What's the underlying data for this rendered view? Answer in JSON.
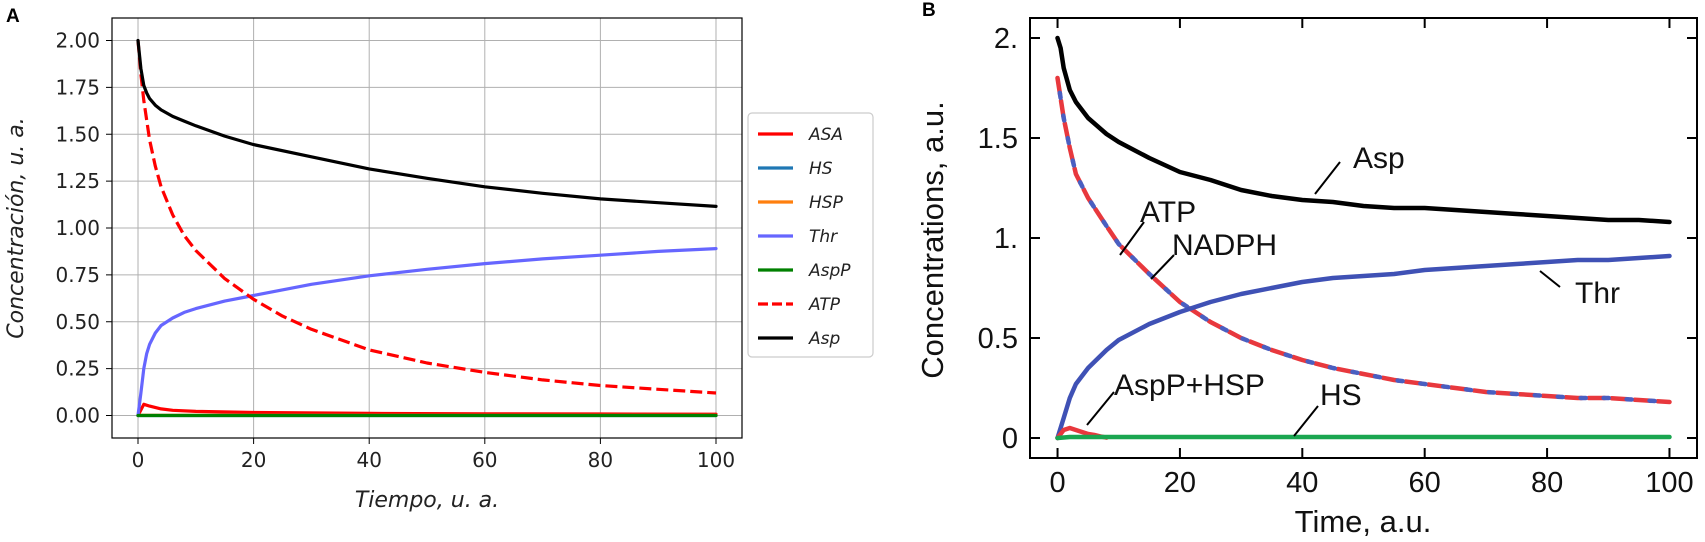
{
  "panels": [
    {
      "letter": "A"
    },
    {
      "letter": "B"
    }
  ],
  "chart_data": [
    {
      "type": "line",
      "xlabel": "Tiempo, u. a.",
      "ylabel": "Concentración, u. a.",
      "xlim": [
        0,
        100
      ],
      "ylim": [
        0,
        2.0
      ],
      "x_ticks": [
        0,
        20,
        40,
        60,
        80,
        100
      ],
      "y_ticks": [
        "0.00",
        "0.25",
        "0.50",
        "0.75",
        "1.00",
        "1.25",
        "1.50",
        "1.75",
        "2.00"
      ],
      "grid": true,
      "legend_position": "right-outside",
      "series": [
        {
          "name": "ASA",
          "color": "#ff0000",
          "dash": "solid",
          "x": [
            0,
            1,
            2,
            4,
            6,
            10,
            20,
            40,
            60,
            80,
            100
          ],
          "y": [
            0,
            0.06,
            0.05,
            0.035,
            0.028,
            0.022,
            0.016,
            0.011,
            0.009,
            0.008,
            0.007
          ]
        },
        {
          "name": "HS",
          "color": "#1f77b4",
          "dash": "solid",
          "x": [
            0,
            100
          ],
          "y": [
            0,
            0
          ]
        },
        {
          "name": "HSP",
          "color": "#ff7f0e",
          "dash": "solid",
          "x": [
            0,
            100
          ],
          "y": [
            0.001,
            0.001
          ]
        },
        {
          "name": "Thr",
          "color": "#6666ff",
          "dash": "solid",
          "x": [
            0,
            0.5,
            1,
            1.5,
            2,
            3,
            4,
            6,
            8,
            10,
            15,
            20,
            30,
            40,
            50,
            60,
            70,
            80,
            90,
            100
          ],
          "y": [
            0,
            0.12,
            0.25,
            0.33,
            0.38,
            0.44,
            0.48,
            0.52,
            0.55,
            0.57,
            0.61,
            0.64,
            0.7,
            0.745,
            0.78,
            0.81,
            0.835,
            0.855,
            0.875,
            0.89
          ]
        },
        {
          "name": "AspP",
          "color": "#008000",
          "dash": "solid",
          "x": [
            0,
            100
          ],
          "y": [
            0,
            0
          ]
        },
        {
          "name": "ATP",
          "color": "#ff0000",
          "dash": "dashed",
          "x": [
            0,
            0.5,
            1,
            2,
            3,
            4,
            6,
            8,
            10,
            15,
            20,
            25,
            30,
            40,
            50,
            60,
            70,
            80,
            90,
            100
          ],
          "y": [
            2.0,
            1.82,
            1.68,
            1.47,
            1.33,
            1.22,
            1.07,
            0.96,
            0.88,
            0.73,
            0.62,
            0.53,
            0.46,
            0.35,
            0.28,
            0.23,
            0.19,
            0.16,
            0.14,
            0.12
          ]
        },
        {
          "name": "Asp",
          "color": "#000000",
          "dash": "solid",
          "x": [
            0,
            0.5,
            1,
            1.5,
            2,
            3,
            4,
            6,
            8,
            10,
            15,
            20,
            30,
            40,
            50,
            60,
            70,
            80,
            90,
            100
          ],
          "y": [
            2.0,
            1.85,
            1.76,
            1.72,
            1.69,
            1.655,
            1.63,
            1.595,
            1.57,
            1.545,
            1.49,
            1.445,
            1.38,
            1.315,
            1.265,
            1.22,
            1.185,
            1.155,
            1.135,
            1.115
          ]
        }
      ]
    },
    {
      "type": "line",
      "xlabel": "Time, a.u.",
      "ylabel": "Concentrations, a.u.",
      "xlim": [
        0,
        100
      ],
      "ylim": [
        0,
        2.0
      ],
      "x_ticks": [
        "0",
        "20",
        "40",
        "60",
        "80",
        "100"
      ],
      "y_ticks": [
        {
          "value": 0,
          "label": "0"
        },
        {
          "value": 0.5,
          "label": "0.5"
        },
        {
          "value": 1.0,
          "label": "1."
        },
        {
          "value": 1.5,
          "label": "1.5"
        },
        {
          "value": 2.0,
          "label": "2."
        }
      ],
      "grid": false,
      "annotations": [
        {
          "text": "Asp",
          "x": 50,
          "y": 1.35
        },
        {
          "text": "ATP",
          "x": 13,
          "y": 1.12
        },
        {
          "text": "NADPH",
          "x": 26,
          "y": 0.95
        },
        {
          "text": "Thr",
          "x": 87,
          "y": 0.65
        },
        {
          "text": "AspP+HSP",
          "x": 20,
          "y": 0.23
        },
        {
          "text": "HS",
          "x": 43,
          "y": 0.15
        }
      ],
      "series": [
        {
          "name": "Asp",
          "color": "#000000",
          "dash": "solid",
          "x": [
            0,
            0.5,
            1,
            2,
            3,
            5,
            8,
            10,
            15,
            20,
            25,
            30,
            35,
            40,
            45,
            50,
            55,
            60,
            65,
            70,
            75,
            80,
            85,
            90,
            95,
            100
          ],
          "y": [
            2.0,
            1.95,
            1.85,
            1.74,
            1.68,
            1.6,
            1.52,
            1.48,
            1.4,
            1.33,
            1.29,
            1.24,
            1.21,
            1.19,
            1.18,
            1.16,
            1.15,
            1.15,
            1.14,
            1.13,
            1.12,
            1.11,
            1.1,
            1.09,
            1.09,
            1.08
          ]
        },
        {
          "name": "ATP",
          "color": "#e8383d",
          "dash": "dashed",
          "x": [
            0,
            1,
            2,
            3,
            5,
            8,
            10,
            15,
            20,
            25,
            30,
            35,
            40,
            45,
            50,
            55,
            60,
            65,
            70,
            75,
            80,
            85,
            90,
            95,
            100
          ],
          "y": [
            1.8,
            1.6,
            1.45,
            1.32,
            1.2,
            1.06,
            0.97,
            0.82,
            0.68,
            0.58,
            0.5,
            0.44,
            0.39,
            0.35,
            0.32,
            0.29,
            0.27,
            0.25,
            0.23,
            0.22,
            0.21,
            0.2,
            0.2,
            0.19,
            0.18
          ]
        },
        {
          "name": "NADPH",
          "color": "#4a5fc1",
          "dash": "dashed",
          "x": [
            0,
            1,
            2,
            3,
            5,
            8,
            10,
            15,
            20,
            25,
            30,
            35,
            40,
            45,
            50,
            55,
            60,
            65,
            70,
            75,
            80,
            85,
            90,
            95,
            100
          ],
          "y": [
            1.8,
            1.6,
            1.45,
            1.32,
            1.2,
            1.06,
            0.97,
            0.82,
            0.68,
            0.58,
            0.5,
            0.44,
            0.39,
            0.35,
            0.32,
            0.29,
            0.27,
            0.25,
            0.23,
            0.22,
            0.21,
            0.2,
            0.2,
            0.19,
            0.18
          ]
        },
        {
          "name": "Thr",
          "color": "#3f51b5",
          "dash": "solid",
          "x": [
            0,
            1,
            2,
            3,
            5,
            8,
            10,
            15,
            20,
            25,
            30,
            35,
            40,
            45,
            50,
            55,
            60,
            65,
            70,
            75,
            80,
            85,
            90,
            95,
            100
          ],
          "y": [
            0,
            0.1,
            0.2,
            0.27,
            0.35,
            0.44,
            0.49,
            0.57,
            0.63,
            0.68,
            0.72,
            0.75,
            0.78,
            0.8,
            0.81,
            0.82,
            0.84,
            0.85,
            0.86,
            0.87,
            0.88,
            0.89,
            0.89,
            0.9,
            0.91
          ]
        },
        {
          "name": "AspP+HSP",
          "color": "#e8383d",
          "dash": "solid",
          "x": [
            0,
            1,
            2,
            3,
            4,
            5,
            6,
            7,
            8
          ],
          "y": [
            0,
            0.04,
            0.05,
            0.04,
            0.03,
            0.02,
            0.015,
            0.008,
            0.002
          ]
        },
        {
          "name": "HS",
          "color": "#1aa650",
          "dash": "solid",
          "x": [
            0,
            2,
            100
          ],
          "y": [
            0,
            0.005,
            0.005
          ]
        }
      ]
    }
  ]
}
